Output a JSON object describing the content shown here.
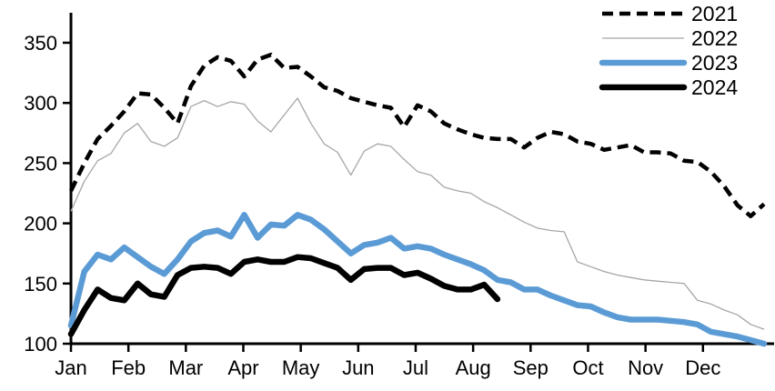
{
  "chart_data": {
    "type": "line",
    "title": "",
    "xlabel": "",
    "ylabel": "",
    "x_axis": {
      "tick_labels": [
        "Jan",
        "Feb",
        "Mar",
        "Apr",
        "May",
        "Jun",
        "Jul",
        "Aug",
        "Sep",
        "Oct",
        "Nov",
        "Dec"
      ],
      "unit": "weekly data points per year"
    },
    "y_axis": {
      "ticks": [
        100,
        150,
        200,
        250,
        300,
        350
      ],
      "range": [
        100,
        375
      ],
      "grid": false
    },
    "legend": {
      "position": "top-right",
      "entries": [
        "2021",
        "2022",
        "2023",
        "2024"
      ]
    },
    "colors": {
      "series_2021": "#000000",
      "series_2022": "#a6a6a6",
      "series_2023": "#5b9bd5",
      "series_2024": "#000000",
      "axis": "#000000",
      "background": "#ffffff"
    },
    "series": [
      {
        "name": "2021",
        "style": "dashed",
        "color": "#000000",
        "stroke_width": 4.5,
        "values": [
          227,
          250,
          270,
          281,
          293,
          308,
          307,
          296,
          283,
          314,
          331,
          338,
          335,
          322,
          336,
          340,
          329,
          330,
          322,
          313,
          310,
          304,
          301,
          298,
          296,
          280,
          298,
          293,
          283,
          278,
          274,
          271,
          270,
          270,
          263,
          271,
          276,
          274,
          268,
          266,
          261,
          263,
          265,
          259,
          259,
          258,
          252,
          251,
          243,
          231,
          215,
          206,
          216
        ]
      },
      {
        "name": "2022",
        "style": "thin-solid",
        "color": "#a6a6a6",
        "stroke_width": 1.3,
        "values": [
          210,
          235,
          252,
          258,
          275,
          283,
          268,
          264,
          271,
          297,
          302,
          297,
          301,
          299,
          285,
          276,
          290,
          304,
          283,
          266,
          259,
          240,
          260,
          266,
          264,
          253,
          243,
          240,
          230,
          227,
          225,
          218,
          213,
          207,
          201,
          196,
          194,
          193,
          168,
          164,
          160,
          157,
          155,
          153,
          152,
          151,
          150,
          136,
          133,
          128,
          124,
          116,
          112
        ]
      },
      {
        "name": "2023",
        "style": "thick-solid",
        "color": "#5b9bd5",
        "stroke_width": 6.5,
        "values": [
          115,
          160,
          174,
          170,
          180,
          172,
          164,
          158,
          170,
          185,
          192,
          194,
          189,
          207,
          188,
          199,
          198,
          207,
          203,
          195,
          185,
          175,
          182,
          184,
          188,
          179,
          181,
          179,
          174,
          170,
          166,
          161,
          153,
          151,
          145,
          145,
          140,
          136,
          132,
          131,
          126,
          122,
          120,
          120,
          120,
          119,
          118,
          116,
          110,
          108,
          106,
          103,
          100
        ]
      },
      {
        "name": "2024",
        "style": "thick-solid",
        "color": "#000000",
        "stroke_width": 6.5,
        "values": [
          108,
          128,
          145,
          138,
          136,
          150,
          141,
          139,
          157,
          163,
          164,
          163,
          158,
          168,
          170,
          168,
          168,
          172,
          171,
          167,
          163,
          153,
          162,
          163,
          163,
          157,
          159,
          154,
          148,
          145,
          145,
          149,
          137
        ]
      }
    ]
  }
}
